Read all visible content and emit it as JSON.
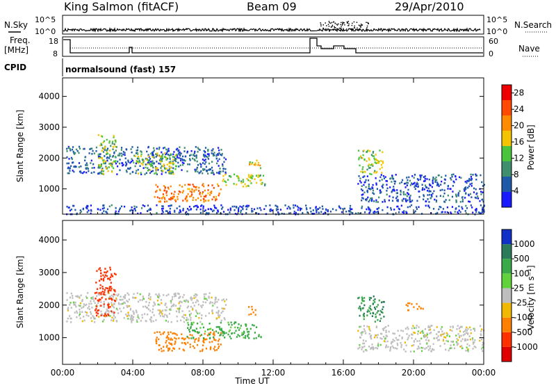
{
  "header": {
    "station": "King Salmon (fitACF)",
    "beam": "Beam 09",
    "date": "29/Apr/2010"
  },
  "strip_panels": {
    "left_labels": {
      "nsky": "N.Sky",
      "freq_line1": "Freq.",
      "freq_line2": "[MHz]",
      "cpid": "CPID"
    },
    "right_labels": {
      "nsearch": "N.Search",
      "nave": "Nave"
    },
    "noise_ticks_left": [
      "10^5",
      "10^0"
    ],
    "noise_ticks_right": [
      "10^5",
      "10^0"
    ],
    "freq_ticks": [
      "18",
      "8"
    ],
    "nave_ticks": [
      "60",
      "0"
    ],
    "cpid_text": "normalsound (fast)  157"
  },
  "chart_data": [
    {
      "type": "heatmap",
      "panel": "power",
      "ylabel": "Slant Range [km]",
      "xlabel": "",
      "x_ticks": [
        "00:00",
        "04:00",
        "08:00",
        "12:00",
        "16:00",
        "20:00",
        "00:00"
      ],
      "x_range_hours": [
        0,
        24
      ],
      "y_ticks": [
        1000,
        2000,
        3000,
        4000
      ],
      "y_range": [
        180,
        4600
      ],
      "colorbar": {
        "label": "Power [dB]",
        "ticks": [
          4,
          8,
          12,
          16,
          20,
          24,
          28
        ],
        "range": [
          0,
          30
        ],
        "colors": [
          "#1a1aff",
          "#1e5aa8",
          "#3f8f6e",
          "#49c43c",
          "#f5c400",
          "#ff8c00",
          "#ff4a00",
          "#ee0000"
        ]
      },
      "regions": [
        {
          "t0": 0.2,
          "t1": 9.3,
          "r0": 1500,
          "r1": 2400,
          "level": 6
        },
        {
          "t0": 2.0,
          "t1": 3.0,
          "r0": 1500,
          "r1": 2800,
          "level": 14
        },
        {
          "t0": 4.0,
          "t1": 6.5,
          "r0": 1500,
          "r1": 2200,
          "level": 14
        },
        {
          "t0": 5.2,
          "t1": 9.0,
          "r0": 600,
          "r1": 1200,
          "level": 22
        },
        {
          "t0": 9.0,
          "t1": 11.5,
          "r0": 1100,
          "r1": 1500,
          "level": 14
        },
        {
          "t0": 10.5,
          "t1": 11.3,
          "r0": 1700,
          "r1": 2000,
          "level": 18
        },
        {
          "t0": 16.8,
          "t1": 24.0,
          "r0": 600,
          "r1": 1500,
          "level": 5
        },
        {
          "t0": 16.8,
          "t1": 18.3,
          "r0": 1500,
          "r1": 2300,
          "level": 14
        },
        {
          "t0": 0.2,
          "t1": 24.0,
          "r0": 200,
          "r1": 500,
          "level": 4
        }
      ]
    },
    {
      "type": "heatmap",
      "panel": "velocity",
      "ylabel": "Slant Range [km]",
      "xlabel": "Time UT",
      "x_ticks": [
        "00:00",
        "04:00",
        "08:00",
        "12:00",
        "16:00",
        "20:00",
        "00:00"
      ],
      "x_range_hours": [
        0,
        24
      ],
      "y_ticks": [
        1000,
        2000,
        3000,
        4000
      ],
      "y_range": [
        180,
        4600
      ],
      "colorbar": {
        "label": "Velocity [m s⁻¹]",
        "ticks": [
          1000,
          500,
          100,
          25,
          -25,
          -100,
          -500,
          -1000
        ],
        "colors": [
          "#1030c8",
          "#2b7a5a",
          "#3aaa48",
          "#62d23c",
          "#bebebe",
          "#f0b800",
          "#ff8000",
          "#ff3000",
          "#e00000"
        ]
      },
      "regions": [
        {
          "t0": 0.2,
          "t1": 9.3,
          "r0": 1500,
          "r1": 2400,
          "vel": 0
        },
        {
          "t0": 1.8,
          "t1": 3.0,
          "r0": 1700,
          "r1": 3200,
          "vel": -600
        },
        {
          "t0": 5.2,
          "t1": 9.0,
          "r0": 600,
          "r1": 1200,
          "vel": -150
        },
        {
          "t0": 7.0,
          "t1": 11.3,
          "r0": 1000,
          "r1": 1500,
          "vel": 120
        },
        {
          "t0": 10.5,
          "t1": 11.0,
          "r0": 1700,
          "r1": 2000,
          "vel": -200
        },
        {
          "t0": 16.8,
          "t1": 24.0,
          "r0": 600,
          "r1": 1400,
          "vel": 0
        },
        {
          "t0": 16.8,
          "t1": 18.3,
          "r0": 1500,
          "r1": 2300,
          "vel": 300
        },
        {
          "t0": 19.5,
          "t1": 20.5,
          "r0": 1850,
          "r1": 2100,
          "vel": -150
        }
      ]
    }
  ]
}
